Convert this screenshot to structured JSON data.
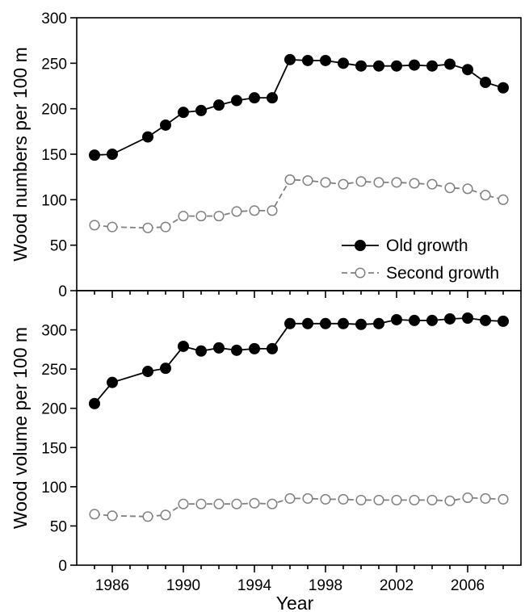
{
  "chart_data": [
    {
      "type": "line",
      "ylabel": "Wood numbers per 100 m",
      "ylim": [
        0,
        300
      ],
      "yticks": [
        0,
        50,
        100,
        150,
        200,
        250,
        300
      ],
      "xlim": [
        1984,
        2009
      ],
      "xticks": [
        1986,
        1990,
        1994,
        1998,
        2002,
        2006
      ],
      "legend": {
        "placement": "bottom-right"
      },
      "series": [
        {
          "name": "Old growth",
          "marker": "filled-circle",
          "line": "solid",
          "color": "#000000",
          "x": [
            1985,
            1986,
            1988,
            1989,
            1990,
            1991,
            1992,
            1993,
            1994,
            1995,
            1996,
            1997,
            1998,
            1999,
            2000,
            2001,
            2002,
            2003,
            2004,
            2005,
            2006,
            2007,
            2008
          ],
          "values": [
            149,
            150,
            169,
            182,
            196,
            198,
            204,
            209,
            212,
            212,
            254,
            253,
            253,
            250,
            247,
            247,
            247,
            248,
            247,
            249,
            243,
            229,
            223
          ]
        },
        {
          "name": "Second growth",
          "marker": "open-circle",
          "line": "dashed",
          "color": "#808080",
          "x": [
            1985,
            1986,
            1988,
            1989,
            1990,
            1991,
            1992,
            1993,
            1994,
            1995,
            1996,
            1997,
            1998,
            1999,
            2000,
            2001,
            2002,
            2003,
            2004,
            2005,
            2006,
            2007,
            2008
          ],
          "values": [
            72,
            70,
            69,
            70,
            82,
            82,
            82,
            87,
            88,
            88,
            122,
            121,
            119,
            117,
            120,
            119,
            119,
            118,
            117,
            113,
            112,
            105,
            100
          ]
        }
      ]
    },
    {
      "type": "line",
      "xlabel": "Year",
      "ylabel": "Wood volume per 100 m",
      "ylim": [
        0,
        350
      ],
      "yticks": [
        0,
        50,
        100,
        150,
        200,
        250,
        300
      ],
      "xlim": [
        1984,
        2009
      ],
      "xticks": [
        1986,
        1990,
        1994,
        1998,
        2002,
        2006
      ],
      "series": [
        {
          "name": "Old growth",
          "marker": "filled-circle",
          "line": "solid",
          "color": "#000000",
          "x": [
            1985,
            1986,
            1988,
            1989,
            1990,
            1991,
            1992,
            1993,
            1994,
            1995,
            1996,
            1997,
            1998,
            1999,
            2000,
            2001,
            2002,
            2003,
            2004,
            2005,
            2006,
            2007,
            2008
          ],
          "values": [
            206,
            233,
            247,
            251,
            279,
            273,
            277,
            274,
            276,
            276,
            308,
            308,
            308,
            308,
            307,
            308,
            313,
            312,
            312,
            314,
            315,
            312,
            311
          ]
        },
        {
          "name": "Second growth",
          "marker": "open-circle",
          "line": "dashed",
          "color": "#808080",
          "x": [
            1985,
            1986,
            1988,
            1989,
            1990,
            1991,
            1992,
            1993,
            1994,
            1995,
            1996,
            1997,
            1998,
            1999,
            2000,
            2001,
            2002,
            2003,
            2004,
            2005,
            2006,
            2007,
            2008
          ],
          "values": [
            65,
            63,
            62,
            64,
            78,
            78,
            78,
            78,
            79,
            78,
            85,
            85,
            84,
            84,
            83,
            83,
            83,
            83,
            83,
            82,
            86,
            85,
            84
          ]
        }
      ]
    }
  ]
}
